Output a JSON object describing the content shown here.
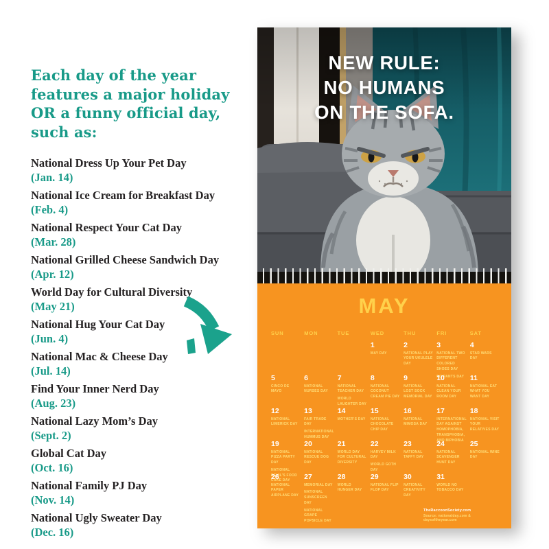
{
  "colors": {
    "teal": "#189A88",
    "orange": "#F79420",
    "yellow": "#FFD14B",
    "paleyellow": "#FFDE79",
    "ink": "#242122"
  },
  "intro": {
    "heading": "Each day of the year features a major holiday OR a funny official day, such as:",
    "items": [
      {
        "name": "National Dress Up Your Pet Day",
        "date": "(Jan. 14)"
      },
      {
        "name": "National Ice Cream for Breakfast Day",
        "date": "(Feb. 4)"
      },
      {
        "name": "National Respect Your Cat Day",
        "date": "(Mar. 28)"
      },
      {
        "name": "National Grilled Cheese Sandwich Day",
        "date": "(Apr. 12)"
      },
      {
        "name": "World Day for Cultural Diversity",
        "date": "(May 21)"
      },
      {
        "name": "National Hug Your Cat Day",
        "date": "(Jun. 4)"
      },
      {
        "name": "National Mac & Cheese Day",
        "date": "(Jul. 14)"
      },
      {
        "name": "Find Your Inner Nerd Day",
        "date": "(Aug. 23)"
      },
      {
        "name": "National Lazy Mom’s Day",
        "date": "(Sept. 2)"
      },
      {
        "name": "Global Cat Day",
        "date": "(Oct. 16)"
      },
      {
        "name": "National Family PJ Day",
        "date": "(Nov. 14)"
      },
      {
        "name": "National Ugly Sweater Day",
        "date": "(Dec. 16)"
      }
    ]
  },
  "poster": {
    "line1": "NEW RULE:",
    "line2": "NO HUMANS",
    "line3": "ON THE SOFA."
  },
  "calendar": {
    "month": "MAY",
    "weekdays": [
      "SUN",
      "MON",
      "TUE",
      "WED",
      "THU",
      "FRI",
      "SAT"
    ],
    "weeks": [
      [
        {
          "d": "",
          "h": []
        },
        {
          "d": "",
          "h": []
        },
        {
          "d": "",
          "h": []
        },
        {
          "d": "1",
          "h": [
            "MAY DAY"
          ]
        },
        {
          "d": "2",
          "h": [
            "NATIONAL PLAY YOUR UKULELE DAY"
          ]
        },
        {
          "d": "3",
          "h": [
            "NATIONAL TWO DIFFERENT COLORED SHOES DAY",
            "NO PANTS DAY"
          ]
        },
        {
          "d": "4",
          "h": [
            "STAR WARS DAY"
          ]
        }
      ],
      [
        {
          "d": "5",
          "h": [
            "CINCO DE MAYO"
          ]
        },
        {
          "d": "6",
          "h": [
            "NATIONAL NURSES DAY"
          ]
        },
        {
          "d": "7",
          "h": [
            "NATIONAL TEACHER DAY",
            "WORLD LAUGHTER DAY"
          ]
        },
        {
          "d": "8",
          "h": [
            "NATIONAL COCONUT CREAM PIE DAY"
          ]
        },
        {
          "d": "9",
          "h": [
            "NATIONAL LOST SOCK MEMORIAL DAY"
          ]
        },
        {
          "d": "10",
          "h": [
            "NATIONAL CLEAN YOUR ROOM DAY"
          ]
        },
        {
          "d": "11",
          "h": [
            "NATIONAL EAT WHAT YOU WANT DAY"
          ]
        }
      ],
      [
        {
          "d": "12",
          "h": [
            "NATIONAL LIMERICK DAY"
          ]
        },
        {
          "d": "13",
          "h": [
            "FAIR TRADE DAY",
            "INTERNATIONAL HUMMUS DAY"
          ]
        },
        {
          "d": "14",
          "h": [
            "MOTHER’S DAY"
          ]
        },
        {
          "d": "15",
          "h": [
            "NATIONAL CHOCOLATE CHIP DAY"
          ]
        },
        {
          "d": "16",
          "h": [
            "NATIONAL MIMOSA DAY"
          ]
        },
        {
          "d": "17",
          "h": [
            "INTERNATIONAL DAY AGAINST HOMOPHOBIA, TRANSPHOBIA, AND BIPHOBIA"
          ]
        },
        {
          "d": "18",
          "h": [
            "NATIONAL VISIT YOUR RELATIVES DAY"
          ]
        }
      ],
      [
        {
          "d": "19",
          "h": [
            "NATIONAL PIZZA PARTY DAY",
            "NATIONAL DEVIL’S FOOD CAKE DAY"
          ]
        },
        {
          "d": "20",
          "h": [
            "NATIONAL RESCUE DOG DAY"
          ]
        },
        {
          "d": "21",
          "h": [
            "WORLD DAY FOR CULTURAL DIVERSITY"
          ]
        },
        {
          "d": "22",
          "h": [
            "HARVEY MILK DAY",
            "WORLD GOTH DAY"
          ]
        },
        {
          "d": "23",
          "h": [
            "NATIONAL TAFFY DAY"
          ]
        },
        {
          "d": "24",
          "h": [
            "NATIONAL SCAVENGER HUNT DAY"
          ]
        },
        {
          "d": "25",
          "h": [
            "NATIONAL WINE DAY"
          ]
        }
      ],
      [
        {
          "d": "26",
          "h": [
            "NATIONAL PAPER AIRPLANE DAY"
          ]
        },
        {
          "d": "27",
          "h": [
            "MEMORIAL DAY",
            "NATIONAL SUNSCREEN DAY",
            "NATIONAL GRAPE POPSICLE DAY"
          ]
        },
        {
          "d": "28",
          "h": [
            "WORLD HUNGER DAY"
          ]
        },
        {
          "d": "29",
          "h": [
            "NATIONAL FLIP FLOP DAY"
          ]
        },
        {
          "d": "30",
          "h": [
            "NATIONAL CREATIVITY DAY"
          ]
        },
        {
          "d": "31",
          "h": [
            "WORLD NO TOBACCO DAY"
          ]
        },
        {
          "d": "",
          "h": []
        }
      ]
    ],
    "footer": {
      "line1": "TheRaccoonSociety.com",
      "line2": "Source: nationalday.com & daysoftheyear.com"
    }
  }
}
